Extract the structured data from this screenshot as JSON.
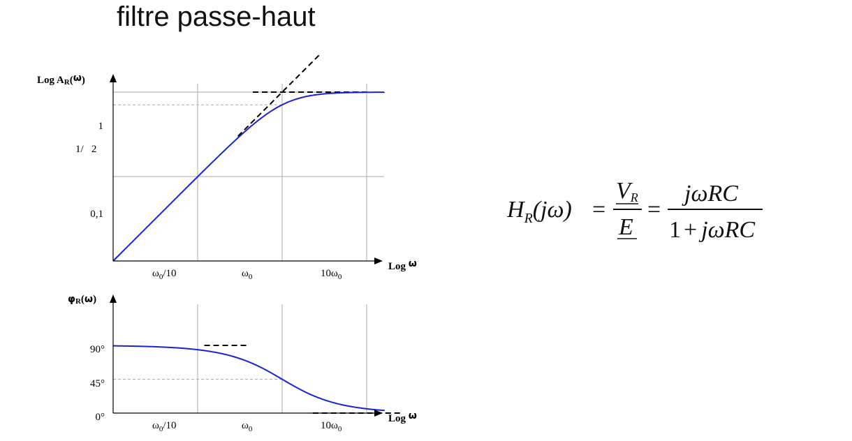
{
  "page": {
    "title": "filtre passe-haut"
  },
  "colors": {
    "curve": "#1a22d6",
    "asymptote": "#000000",
    "grid": "#aaaaaa",
    "ref_dashed": "#aaaaaa",
    "axis": "#000000"
  },
  "chart_data": [
    {
      "type": "line",
      "name": "magnitude",
      "y_axis_label_prefix": "Log  A",
      "y_axis_label_sub": "R",
      "y_axis_label_suffix": "(",
      "y_axis_label_omega": "ω",
      "y_axis_label_close": ")",
      "x_axis_label_prefix": "Log ",
      "x_axis_label_omega": "ω",
      "x_scale": "log",
      "y_scale": "log",
      "x_ticks": [
        {
          "value": 0.1,
          "base": "ω",
          "sub": "0",
          "prefix": "",
          "suffix": "/10"
        },
        {
          "value": 1,
          "base": "ω",
          "sub": "0",
          "prefix": "",
          "suffix": ""
        },
        {
          "value": 10,
          "base": "ω",
          "sub": "0",
          "prefix": "10",
          "suffix": ""
        }
      ],
      "y_ticks": [
        {
          "value": 1,
          "label": "1",
          "line": "solid"
        },
        {
          "value": 0.7071,
          "label": "1/   2",
          "line": "dashed"
        },
        {
          "value": 0.1,
          "label": "0,1",
          "line": "solid"
        }
      ],
      "xlim": [
        0.01,
        30
      ],
      "ylim": [
        0.01,
        10
      ],
      "grid": true,
      "series": [
        {
          "kind": "curve",
          "formula": "ωRC/sqrt(1+(ωRC)^2)",
          "x": [
            0.01,
            0.03,
            0.1,
            0.2,
            0.3,
            0.5,
            0.7,
            1,
            1.5,
            2,
            3,
            5,
            7,
            10,
            30
          ],
          "y": [
            0.01,
            0.03,
            0.1,
            0.196,
            0.287,
            0.447,
            0.573,
            0.707,
            0.832,
            0.894,
            0.949,
            0.981,
            0.99,
            0.995,
            0.999
          ]
        },
        {
          "kind": "asymptote",
          "x": [
            0.3,
            2.8
          ],
          "y": [
            0.3,
            2.8
          ]
        },
        {
          "kind": "asymptote",
          "x": [
            0.45,
            10
          ],
          "y": [
            1,
            1
          ]
        }
      ]
    },
    {
      "type": "line",
      "name": "phase",
      "y_axis_label_prefix": "φ",
      "y_axis_label_sub": "R",
      "y_axis_label_suffix": "(",
      "y_axis_label_omega": "ω",
      "y_axis_label_close": ")",
      "x_axis_label_prefix": "Log ",
      "x_axis_label_omega": "ω",
      "x_scale": "log",
      "x_ticks": [
        {
          "value": 0.1,
          "base": "ω",
          "sub": "0",
          "prefix": "",
          "suffix": "/10"
        },
        {
          "value": 1,
          "base": "ω",
          "sub": "0",
          "prefix": "",
          "suffix": ""
        },
        {
          "value": 10,
          "base": "ω",
          "sub": "0",
          "prefix": "10",
          "suffix": ""
        }
      ],
      "y_ticks": [
        {
          "value": 90,
          "label": "90°",
          "line": "none"
        },
        {
          "value": 45,
          "label": "45°",
          "line": "dashed"
        },
        {
          "value": 0,
          "label": "0°",
          "line": "none"
        }
      ],
      "xlim": [
        0.01,
        30
      ],
      "ylim": [
        0,
        130
      ],
      "grid": true,
      "series": [
        {
          "kind": "curve",
          "formula": "90 - atan(ωRC)",
          "x": [
            0.01,
            0.1,
            0.2,
            0.3,
            0.5,
            0.7,
            1,
            1.5,
            2,
            3,
            5,
            10,
            20
          ],
          "y": [
            90,
            90,
            89,
            86,
            78,
            66,
            45,
            20,
            9,
            4,
            2,
            0.5,
            0
          ]
        },
        {
          "kind": "asymptote",
          "x": [
            0.12,
            0.4
          ],
          "y": [
            90,
            90
          ]
        },
        {
          "kind": "asymptote",
          "x": [
            2.3,
            25
          ],
          "y": [
            0,
            0
          ]
        }
      ]
    }
  ],
  "formula": {
    "lhs_H": "H",
    "lhs_sub": "R",
    "lhs_arg": "(jω)",
    "eq1": "=",
    "frac1_num": "V",
    "frac1_num_sub": "R",
    "frac1_den": "E",
    "eq2": "=",
    "frac2_num": "jωRC",
    "frac2_den_one": "1",
    "frac2_den_plus": "+",
    "frac2_den_rest": "jωRC"
  }
}
